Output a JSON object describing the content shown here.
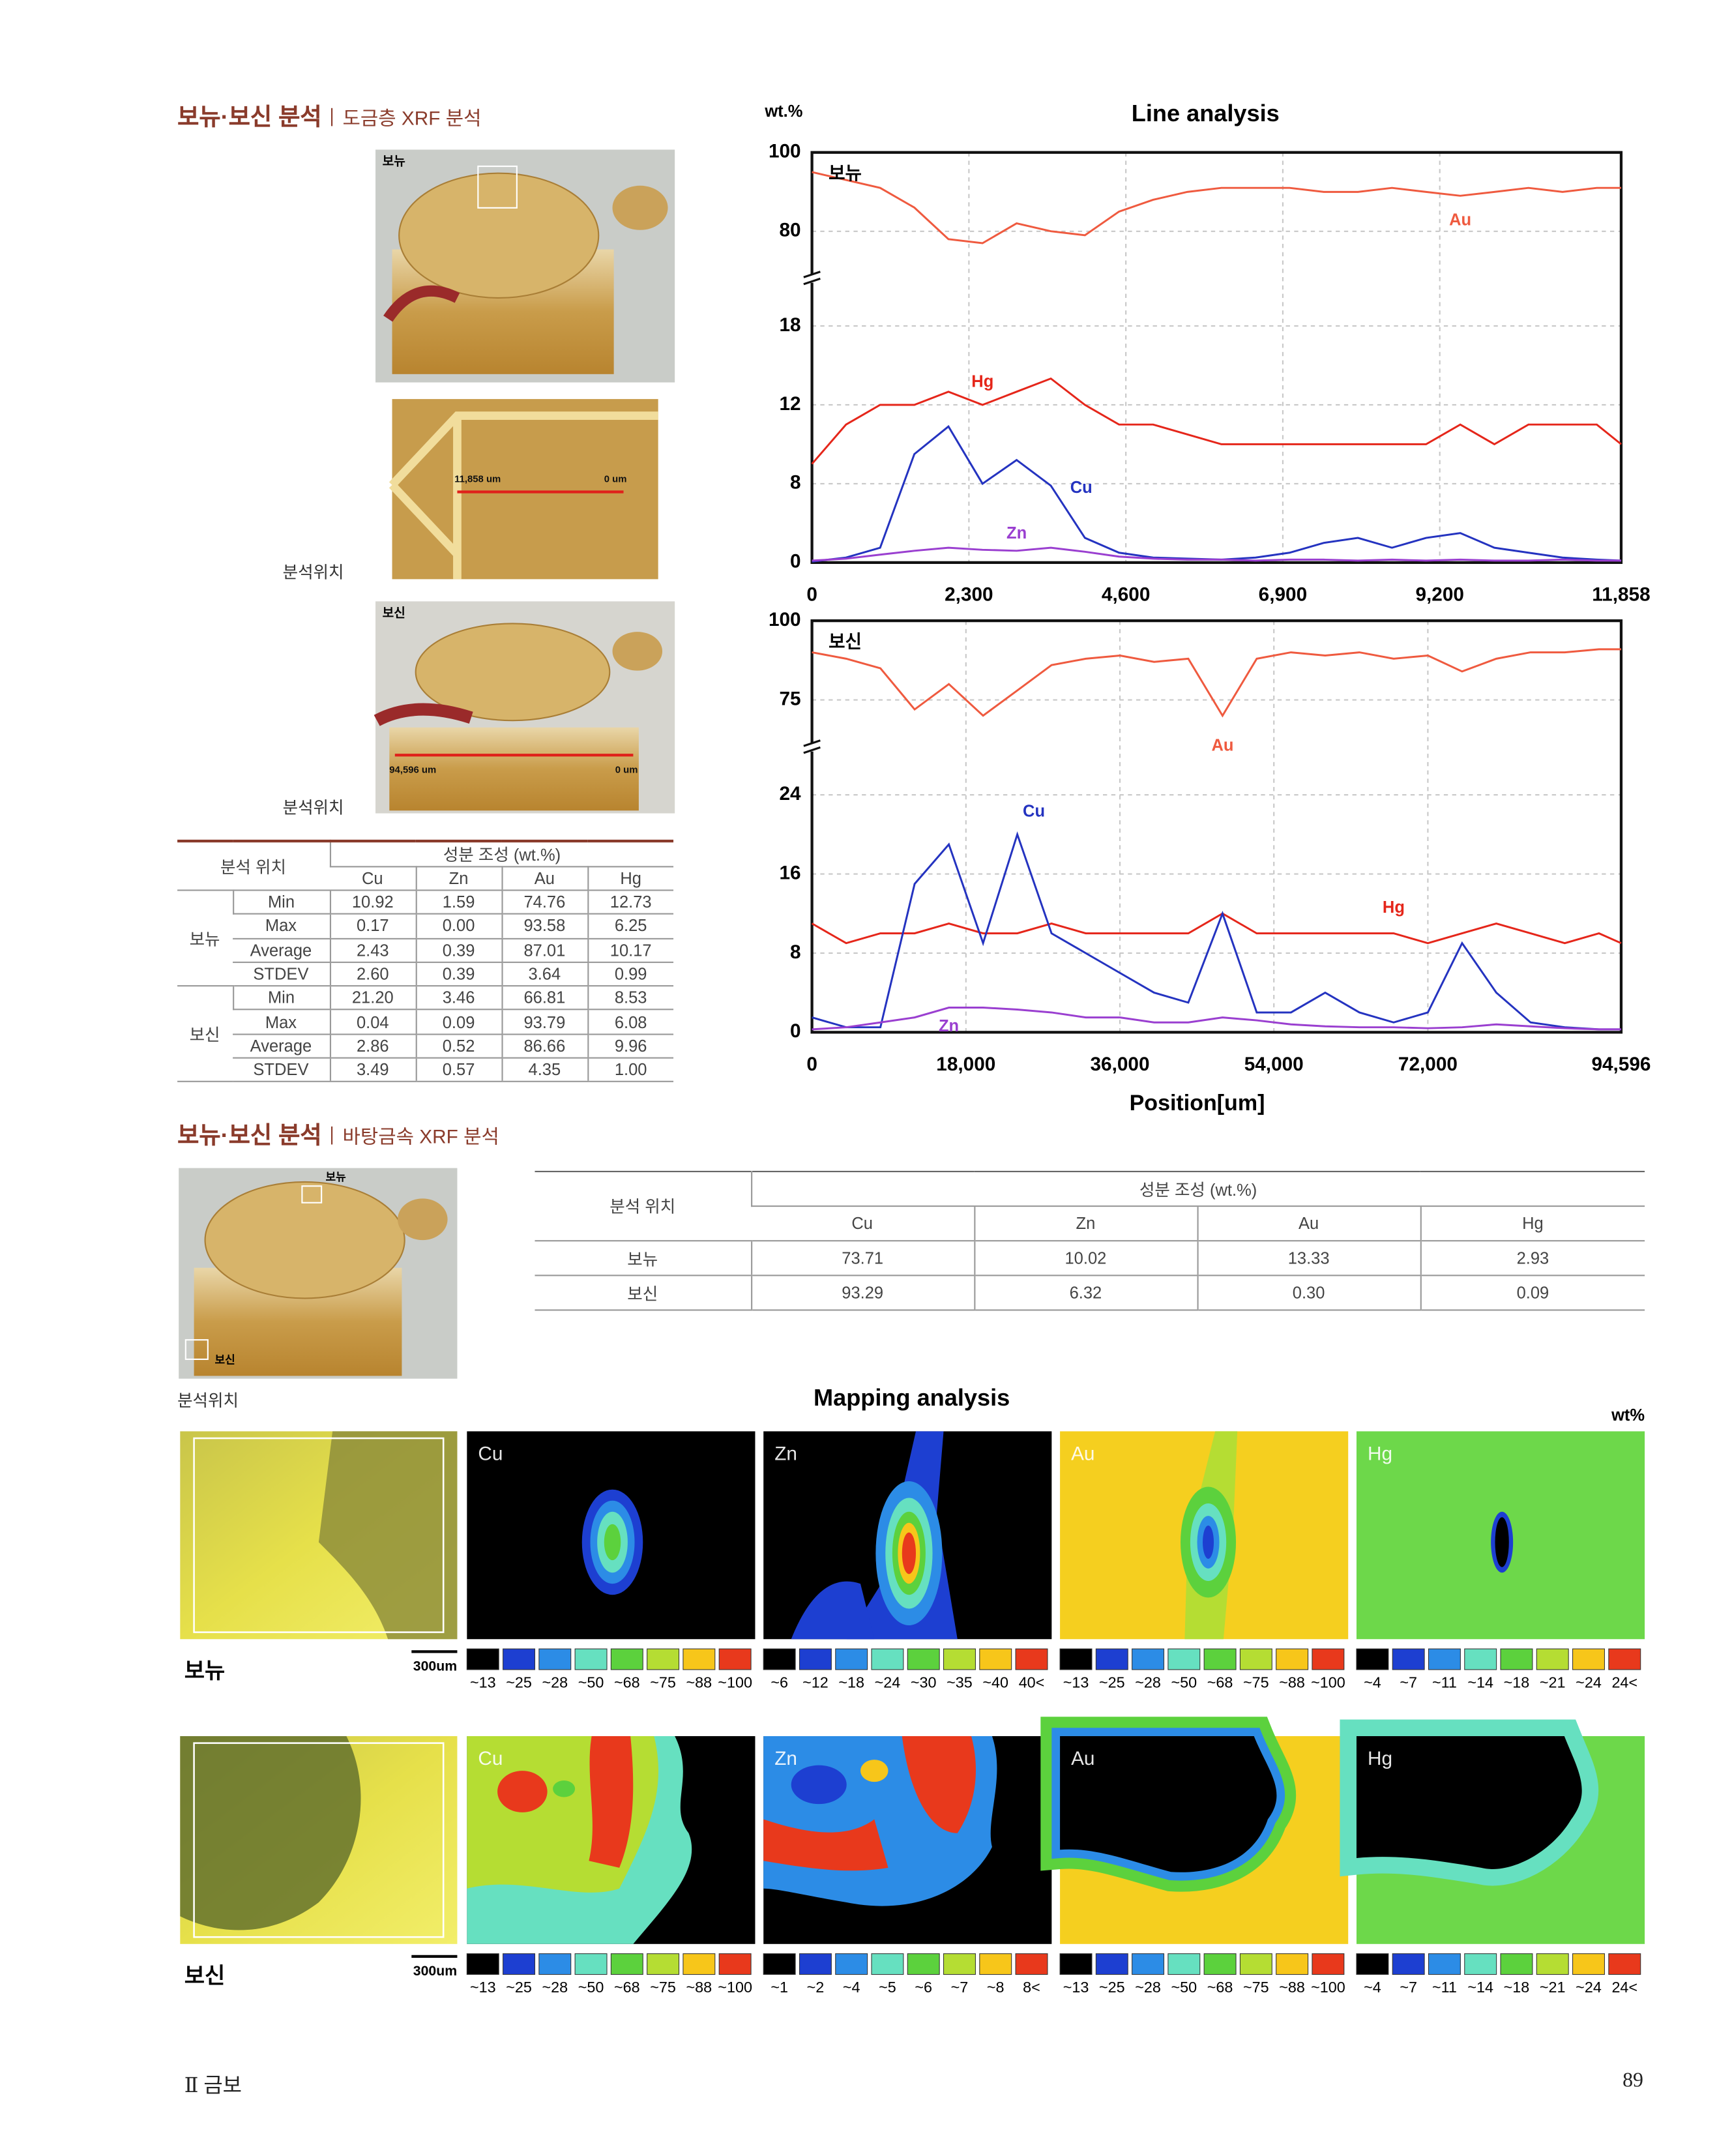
{
  "section1": {
    "title": "보뉴·보신 분석",
    "subtitle": "도금층 XRF 분석"
  },
  "photos1": {
    "top_label": "보뉴",
    "detail_start": "11,858 um",
    "detail_end": "0 um",
    "location": "분석위치",
    "bottom_label": "보신",
    "bottom_start": "94,596 um",
    "bottom_end": "0 um",
    "location2": "분석위치"
  },
  "table1": {
    "position": "분석 위치",
    "composition": "성분 조성 (wt.%)",
    "elements": [
      "Cu",
      "Zn",
      "Au",
      "Hg"
    ],
    "groups": [
      {
        "name": "보뉴",
        "rows": [
          {
            "stat": "Min",
            "values": [
              "10.92",
              "1.59",
              "74.76",
              "12.73"
            ]
          },
          {
            "stat": "Max",
            "values": [
              "0.17",
              "0.00",
              "93.58",
              "6.25"
            ]
          },
          {
            "stat": "Average",
            "values": [
              "2.43",
              "0.39",
              "87.01",
              "10.17"
            ]
          },
          {
            "stat": "STDEV",
            "values": [
              "2.60",
              "0.39",
              "3.64",
              "0.99"
            ]
          }
        ]
      },
      {
        "name": "보신",
        "rows": [
          {
            "stat": "Min",
            "values": [
              "21.20",
              "3.46",
              "66.81",
              "8.53"
            ]
          },
          {
            "stat": "Max",
            "values": [
              "0.04",
              "0.09",
              "93.79",
              "6.08"
            ]
          },
          {
            "stat": "Average",
            "values": [
              "2.86",
              "0.52",
              "86.66",
              "9.96"
            ]
          },
          {
            "stat": "STDEV",
            "values": [
              "3.49",
              "0.57",
              "4.35",
              "1.00"
            ]
          }
        ]
      }
    ]
  },
  "chart_data": [
    {
      "type": "line",
      "title": "Line analysis",
      "y_unit": "wt.%",
      "panel_label": "보뉴",
      "grid": true,
      "x": [
        0,
        500,
        1000,
        1500,
        2000,
        2500,
        3000,
        3500,
        4000,
        4500,
        5000,
        5500,
        6000,
        6500,
        7000,
        7500,
        8000,
        8500,
        9000,
        9500,
        10000,
        10500,
        11000,
        11500,
        11858
      ],
      "xlim": [
        0,
        11858
      ],
      "xticks": [
        0,
        {
          "value": 2300,
          "label": "2,300"
        },
        {
          "value": 4600,
          "label": "4,600"
        },
        {
          "value": 6900,
          "label": "6,900"
        },
        {
          "value": 9200,
          "label": "9,200"
        },
        {
          "value": 11858,
          "label": "11,858"
        }
      ],
      "ylim": [
        0,
        100
      ],
      "yticks": [
        0,
        8,
        12,
        18,
        80,
        100
      ],
      "series": [
        {
          "name": "Au",
          "color": "#ef5a3f",
          "values": [
            95,
            93,
            91,
            86,
            78,
            77,
            82,
            80,
            79,
            85,
            88,
            90,
            91,
            91,
            91,
            90,
            90,
            91,
            90,
            89,
            90,
            91,
            90,
            91,
            91
          ]
        },
        {
          "name": "Hg",
          "color": "#e5261a",
          "values": [
            9,
            11,
            12,
            12,
            13,
            12,
            13,
            14,
            12,
            11,
            11,
            10.5,
            10,
            10,
            10,
            10,
            10,
            10,
            10,
            11,
            10,
            11,
            11,
            11,
            10
          ]
        },
        {
          "name": "Cu",
          "color": "#2433c0",
          "values": [
            0.1,
            0.5,
            1.5,
            9.5,
            10.9,
            8,
            9.2,
            7.8,
            2.5,
            1,
            0.5,
            0.4,
            0.3,
            0.5,
            1,
            2,
            2.5,
            1.5,
            2.5,
            3,
            1.5,
            1,
            0.5,
            0.3,
            0.2
          ]
        },
        {
          "name": "Zn",
          "color": "#9a3fd0",
          "values": [
            0.2,
            0.4,
            0.8,
            1.2,
            1.5,
            1.3,
            1.2,
            1.5,
            1.1,
            0.6,
            0.4,
            0.3,
            0.3,
            0.2,
            0.3,
            0.3,
            0.2,
            0.3,
            0.2,
            0.3,
            0.2,
            0.2,
            0.3,
            0.2,
            0.2
          ]
        }
      ]
    },
    {
      "type": "line",
      "panel_label": "보신",
      "x_label": "Position[um]",
      "grid": true,
      "x": [
        0,
        4000,
        8000,
        12000,
        16000,
        20000,
        24000,
        28000,
        32000,
        36000,
        40000,
        44000,
        48000,
        52000,
        56000,
        60000,
        64000,
        68000,
        72000,
        76000,
        80000,
        84000,
        88000,
        92000,
        94596
      ],
      "xlim": [
        0,
        94596
      ],
      "xticks": [
        0,
        {
          "value": 18000,
          "label": "18,000"
        },
        {
          "value": 36000,
          "label": "36,000"
        },
        {
          "value": 54000,
          "label": "54,000"
        },
        {
          "value": 72000,
          "label": "72,000"
        },
        {
          "value": 94596,
          "label": "94,596"
        }
      ],
      "ylim": [
        0,
        100
      ],
      "yticks": [
        0,
        8,
        16,
        24,
        75,
        100
      ],
      "series": [
        {
          "name": "Au",
          "color": "#ef5a3f",
          "values": [
            90,
            88,
            85,
            72,
            80,
            70,
            78,
            86,
            88,
            89,
            87,
            88,
            70,
            88,
            90,
            89,
            90,
            88,
            89,
            84,
            88,
            90,
            90,
            91,
            91
          ]
        },
        {
          "name": "Hg",
          "color": "#e5261a",
          "values": [
            11,
            9,
            10,
            10,
            11,
            10,
            10,
            11,
            10,
            10,
            10,
            10,
            12,
            10,
            10,
            10,
            10,
            10,
            9,
            10,
            11,
            10,
            9,
            10,
            9
          ]
        },
        {
          "name": "Cu",
          "color": "#2433c0",
          "values": [
            1.5,
            0.5,
            0.5,
            15,
            19,
            9,
            20,
            10,
            8,
            6,
            4,
            3,
            12,
            2,
            2,
            4,
            2,
            1,
            2,
            9,
            4,
            1,
            0.5,
            0.3,
            0.3
          ]
        },
        {
          "name": "Zn",
          "color": "#9a3fd0",
          "values": [
            0.3,
            0.5,
            1,
            1.5,
            2.5,
            2.5,
            2.3,
            2,
            1.5,
            1.5,
            1,
            1,
            1.5,
            1.2,
            0.8,
            0.6,
            0.5,
            0.5,
            0.4,
            0.5,
            0.8,
            0.6,
            0.4,
            0.3,
            0.3
          ]
        }
      ]
    }
  ],
  "section2": {
    "title": "보뉴·보신 분석",
    "subtitle": "바탕금속 XRF 분석"
  },
  "photo2": {
    "label_top": "보뉴",
    "label_bottom": "보신",
    "location": "분석위치"
  },
  "table2": {
    "position": "분석 위치",
    "composition": "성분 조성 (wt.%)",
    "elements": [
      "Cu",
      "Zn",
      "Au",
      "Hg"
    ],
    "rows": [
      {
        "name": "보뉴",
        "values": [
          "73.71",
          "10.02",
          "13.33",
          "2.93"
        ]
      },
      {
        "name": "보신",
        "values": [
          "93.29",
          "6.32",
          "0.30",
          "0.09"
        ]
      }
    ]
  },
  "mapping": {
    "title": "Mapping analysis",
    "unit": "wt%",
    "elements": [
      "Cu",
      "Zn",
      "Au",
      "Hg"
    ],
    "scale_colors": [
      "#000000",
      "#1d3fd1",
      "#2c8ce6",
      "#66e0c0",
      "#5cd13d",
      "#b5dd33",
      "#f7c61a",
      "#e8391c"
    ],
    "rows": [
      {
        "name": "보뉴",
        "scale_bar": "300um",
        "scales": [
          [
            "~13",
            "~25",
            "~28",
            "~50",
            "~68",
            "~75",
            "~88",
            "~100"
          ],
          [
            "~6",
            "~12",
            "~18",
            "~24",
            "~30",
            "~35",
            "~40",
            "40<"
          ],
          [
            "~13",
            "~25",
            "~28",
            "~50",
            "~68",
            "~75",
            "~88",
            "~100"
          ],
          [
            "~4",
            "~7",
            "~11",
            "~14",
            "~18",
            "~21",
            "~24",
            "24<"
          ]
        ]
      },
      {
        "name": "보신",
        "scale_bar": "300um",
        "scales": [
          [
            "~13",
            "~25",
            "~28",
            "~50",
            "~68",
            "~75",
            "~88",
            "~100"
          ],
          [
            "~1",
            "~2",
            "~4",
            "~5",
            "~6",
            "~7",
            "~8",
            "8<"
          ],
          [
            "~13",
            "~25",
            "~28",
            "~50",
            "~68",
            "~75",
            "~88",
            "~100"
          ],
          [
            "~4",
            "~7",
            "~11",
            "~14",
            "~18",
            "~21",
            "~24",
            "24<"
          ]
        ]
      }
    ]
  },
  "footer": {
    "chapter": "Ⅱ 금보",
    "page": "89"
  }
}
